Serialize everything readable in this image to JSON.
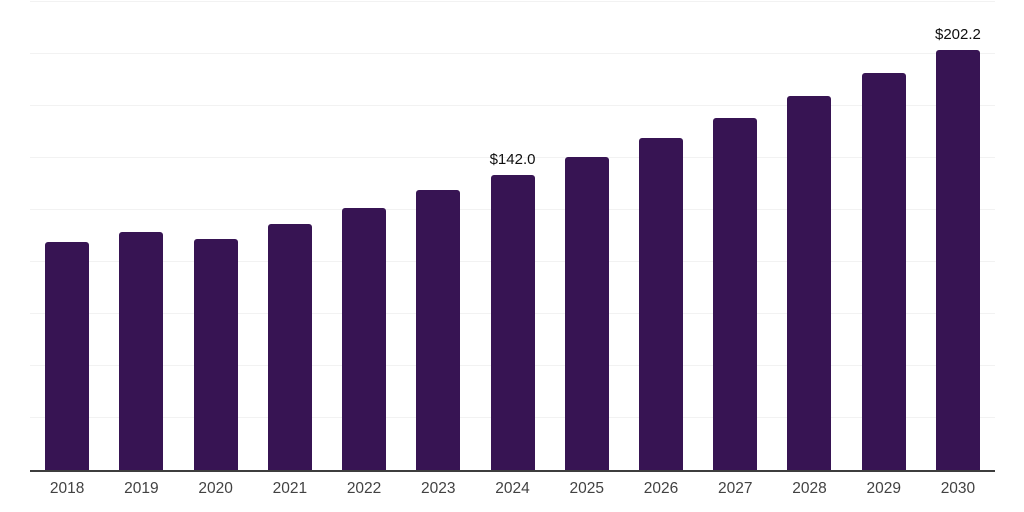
{
  "chart_data": {
    "type": "bar",
    "title": "",
    "xlabel": "",
    "ylabel": "",
    "categories": [
      "2018",
      "2019",
      "2020",
      "2021",
      "2022",
      "2023",
      "2024",
      "2025",
      "2026",
      "2027",
      "2028",
      "2029",
      "2030"
    ],
    "values": [
      109.8,
      114.5,
      111.0,
      118.5,
      126.1,
      134.5,
      142.0,
      150.6,
      159.8,
      169.5,
      179.8,
      190.7,
      202.2
    ],
    "data_labels": [
      {
        "category": "2024",
        "text": "$142.0"
      },
      {
        "category": "2030",
        "text": "$202.2"
      }
    ],
    "ylim": [
      0,
      226
    ],
    "grid_step": 25,
    "grid": "horizontal-only",
    "legend_position": "none",
    "bar_color": "#371453",
    "gridline_color": "#f2f2f2",
    "axis_line_color": "#3d3d3d",
    "data_label_color": "#0f0f0f",
    "tick_label_color": "#424242"
  }
}
